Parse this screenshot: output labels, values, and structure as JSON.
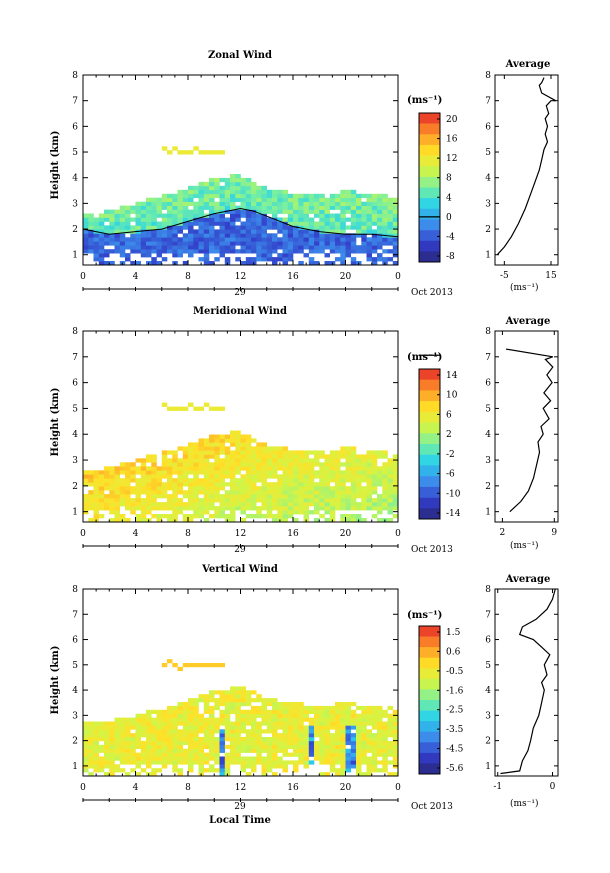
{
  "figure": {
    "x_label": "Local Time",
    "date_label": "29",
    "month_label": "Oct 2013",
    "y_label": "Height (km)",
    "unit_label": "(ms⁻¹)",
    "avg_title": "Average"
  },
  "chart_data": [
    {
      "type": "heatmap",
      "title": "Zonal Wind",
      "x_ticks": [
        "0",
        "4",
        "8",
        "12",
        "16",
        "20",
        "0"
      ],
      "x_range": [
        0,
        24
      ],
      "y_ticks": [
        "1",
        "2",
        "3",
        "4",
        "5",
        "6",
        "7",
        "8"
      ],
      "y_range": [
        0.6,
        8
      ],
      "colorbar": {
        "ticks": [
          "20",
          "16",
          "12",
          "8",
          "4",
          "0",
          "-4",
          "-8"
        ],
        "range": [
          -10,
          22
        ],
        "marked_value": 0
      },
      "average_profile": {
        "title": "Average",
        "x_ticks": [
          "-5",
          "15"
        ],
        "x_range": [
          -9,
          18
        ],
        "y_range": [
          0.6,
          8
        ],
        "points": [
          [
            -8,
            1.0
          ],
          [
            -5,
            1.3
          ],
          [
            -2,
            1.7
          ],
          [
            1,
            2.2
          ],
          [
            4,
            2.8
          ],
          [
            6,
            3.3
          ],
          [
            8,
            3.8
          ],
          [
            10,
            4.3
          ],
          [
            11,
            4.7
          ],
          [
            12,
            5.1
          ],
          [
            13.5,
            5.4
          ],
          [
            12.5,
            5.7
          ],
          [
            13.5,
            6.0
          ],
          [
            12.5,
            6.3
          ],
          [
            14,
            6.5
          ],
          [
            13,
            6.8
          ],
          [
            15,
            7.0
          ],
          [
            17,
            7.0
          ],
          [
            11,
            7.3
          ],
          [
            10,
            7.6
          ],
          [
            11,
            7.7
          ],
          [
            12,
            7.9
          ]
        ]
      },
      "wind_top_km": [
        [
          0,
          2.5
        ],
        [
          2,
          2.6
        ],
        [
          4,
          2.9
        ],
        [
          6,
          3.2
        ],
        [
          8,
          3.5
        ],
        [
          10,
          3.9
        ],
        [
          12,
          4.0
        ],
        [
          14,
          3.5
        ],
        [
          16,
          3.3
        ],
        [
          18,
          3.2
        ],
        [
          20,
          3.4
        ],
        [
          22,
          3.3
        ],
        [
          24,
          3.1
        ]
      ],
      "boundary_km": [
        [
          0,
          2.0
        ],
        [
          2,
          1.8
        ],
        [
          4,
          1.9
        ],
        [
          6,
          2.0
        ],
        [
          8,
          2.3
        ],
        [
          10,
          2.6
        ],
        [
          11,
          2.7
        ],
        [
          12,
          2.8
        ],
        [
          13,
          2.7
        ],
        [
          14,
          2.5
        ],
        [
          16,
          2.1
        ],
        [
          18,
          1.9
        ],
        [
          20,
          1.8
        ],
        [
          22,
          1.8
        ],
        [
          24,
          1.7
        ]
      ]
    },
    {
      "type": "heatmap",
      "title": "Meridional Wind",
      "x_ticks": [
        "0",
        "4",
        "8",
        "12",
        "16",
        "20",
        "0"
      ],
      "x_range": [
        0,
        24
      ],
      "y_ticks": [
        "1",
        "2",
        "3",
        "4",
        "5",
        "6",
        "7",
        "8"
      ],
      "y_range": [
        0.6,
        8
      ],
      "colorbar": {
        "ticks": [
          "14",
          "10",
          "6",
          "2",
          "-2",
          "-6",
          "-10",
          "-14"
        ],
        "range": [
          -16,
          16
        ],
        "marked_value": 0
      },
      "average_profile": {
        "title": "Average",
        "x_ticks": [
          "2",
          "9"
        ],
        "x_range": [
          1,
          9.5
        ],
        "y_range": [
          0.6,
          8
        ],
        "points": [
          [
            3,
            1.0
          ],
          [
            4.5,
            1.4
          ],
          [
            5.5,
            1.8
          ],
          [
            6.2,
            2.3
          ],
          [
            6.6,
            2.8
          ],
          [
            7,
            3.3
          ],
          [
            6.8,
            3.7
          ],
          [
            7.5,
            4.0
          ],
          [
            7.2,
            4.3
          ],
          [
            8.3,
            4.6
          ],
          [
            7.5,
            5.0
          ],
          [
            8.5,
            5.3
          ],
          [
            7.6,
            5.6
          ],
          [
            8.7,
            6.0
          ],
          [
            8.0,
            6.3
          ],
          [
            8.8,
            6.6
          ],
          [
            7.8,
            6.9
          ],
          [
            8.8,
            7.0
          ],
          [
            2.5,
            7.3
          ]
        ]
      },
      "wind_top_km": [
        [
          0,
          2.5
        ],
        [
          2,
          2.6
        ],
        [
          4,
          2.9
        ],
        [
          6,
          3.2
        ],
        [
          8,
          3.5
        ],
        [
          10,
          3.9
        ],
        [
          12,
          4.0
        ],
        [
          14,
          3.5
        ],
        [
          16,
          3.3
        ],
        [
          18,
          3.2
        ],
        [
          20,
          3.4
        ],
        [
          22,
          3.3
        ],
        [
          24,
          3.1
        ]
      ]
    },
    {
      "type": "heatmap",
      "title": "Vertical Wind",
      "x_ticks": [
        "0",
        "4",
        "8",
        "12",
        "16",
        "20",
        "0"
      ],
      "x_range": [
        0,
        24
      ],
      "y_ticks": [
        "1",
        "2",
        "3",
        "4",
        "5",
        "6",
        "7",
        "8"
      ],
      "y_range": [
        0.6,
        8
      ],
      "colorbar": {
        "ticks": [
          "1.5",
          "0.6",
          "-0.5",
          "-1.6",
          "-2.5",
          "-3.5",
          "-4.5",
          "-5.6"
        ],
        "range": [
          -6,
          2
        ],
        "marked_value": null
      },
      "average_profile": {
        "title": "Average",
        "x_ticks": [
          "-1",
          "0"
        ],
        "x_range": [
          -1.05,
          0.1
        ],
        "y_range": [
          0.6,
          8
        ],
        "points": [
          [
            -0.95,
            0.7
          ],
          [
            -0.6,
            0.8
          ],
          [
            -0.55,
            1.2
          ],
          [
            -0.45,
            1.6
          ],
          [
            -0.4,
            2.0
          ],
          [
            -0.35,
            2.5
          ],
          [
            -0.25,
            3.0
          ],
          [
            -0.2,
            3.5
          ],
          [
            -0.15,
            4.0
          ],
          [
            -0.2,
            4.3
          ],
          [
            -0.1,
            4.6
          ],
          [
            -0.15,
            5.0
          ],
          [
            -0.05,
            5.4
          ],
          [
            -0.2,
            5.7
          ],
          [
            -0.35,
            6.0
          ],
          [
            -0.6,
            6.2
          ],
          [
            -0.55,
            6.5
          ],
          [
            -0.3,
            6.8
          ],
          [
            -0.1,
            7.2
          ],
          [
            0.0,
            7.6
          ],
          [
            0.05,
            8.0
          ]
        ]
      },
      "wind_top_km": [
        [
          0,
          2.6
        ],
        [
          2,
          2.7
        ],
        [
          4,
          2.9
        ],
        [
          6,
          3.2
        ],
        [
          8,
          3.5
        ],
        [
          10,
          3.9
        ],
        [
          12,
          4.1
        ],
        [
          14,
          3.6
        ],
        [
          16,
          3.4
        ],
        [
          18,
          3.3
        ],
        [
          20,
          3.4
        ],
        [
          22,
          3.3
        ],
        [
          24,
          3.2
        ]
      ]
    }
  ]
}
